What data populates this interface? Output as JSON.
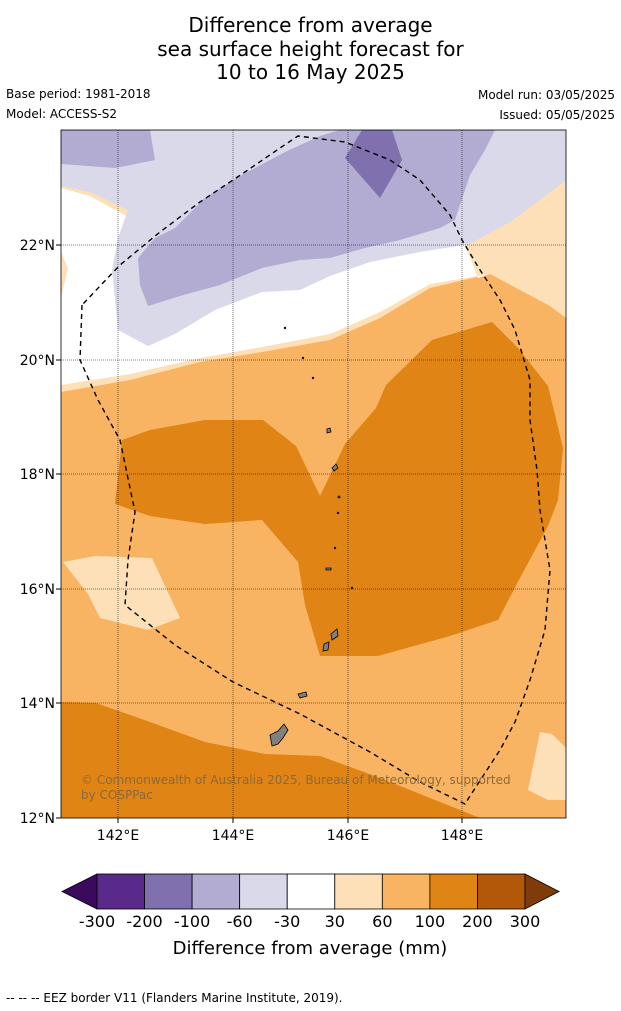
{
  "title": {
    "line1": "Difference from average",
    "line2": "sea surface height forecast for",
    "line3": "10 to 16 May 2025"
  },
  "meta": {
    "base_period": "Base period: 1981-2018",
    "model": "Model: ACCESS-S2",
    "model_run": "Model run: 03/05/2025",
    "issued": "Issued: 05/05/2025"
  },
  "map": {
    "lat_labels": [
      "22°N",
      "20°N",
      "18°N",
      "16°N",
      "14°N",
      "12°N"
    ],
    "lon_labels": [
      "142°E",
      "144°E",
      "146°E",
      "148°E"
    ],
    "copyright_line1": "© Commonwealth of Australia 2025, Bureau of Meteorology, supported",
    "copyright_line2": "by COSPPac"
  },
  "colorbar": {
    "tick_labels": [
      "-300",
      "-200",
      "-100",
      "-60",
      "-30",
      "30",
      "60",
      "100",
      "200",
      "300"
    ],
    "colors": [
      "#3b0a5c",
      "#5a2a8a",
      "#8070ae",
      "#b2acd2",
      "#d9d9ea",
      "#ffffff",
      "#fde0b8",
      "#f8b462",
      "#e08416",
      "#b35809",
      "#7f3b08"
    ],
    "title": "Difference from average (mm)"
  },
  "footer": {
    "text": "--  --  -- EEZ border V11 (Flanders Marine Institute, 2019)."
  }
}
